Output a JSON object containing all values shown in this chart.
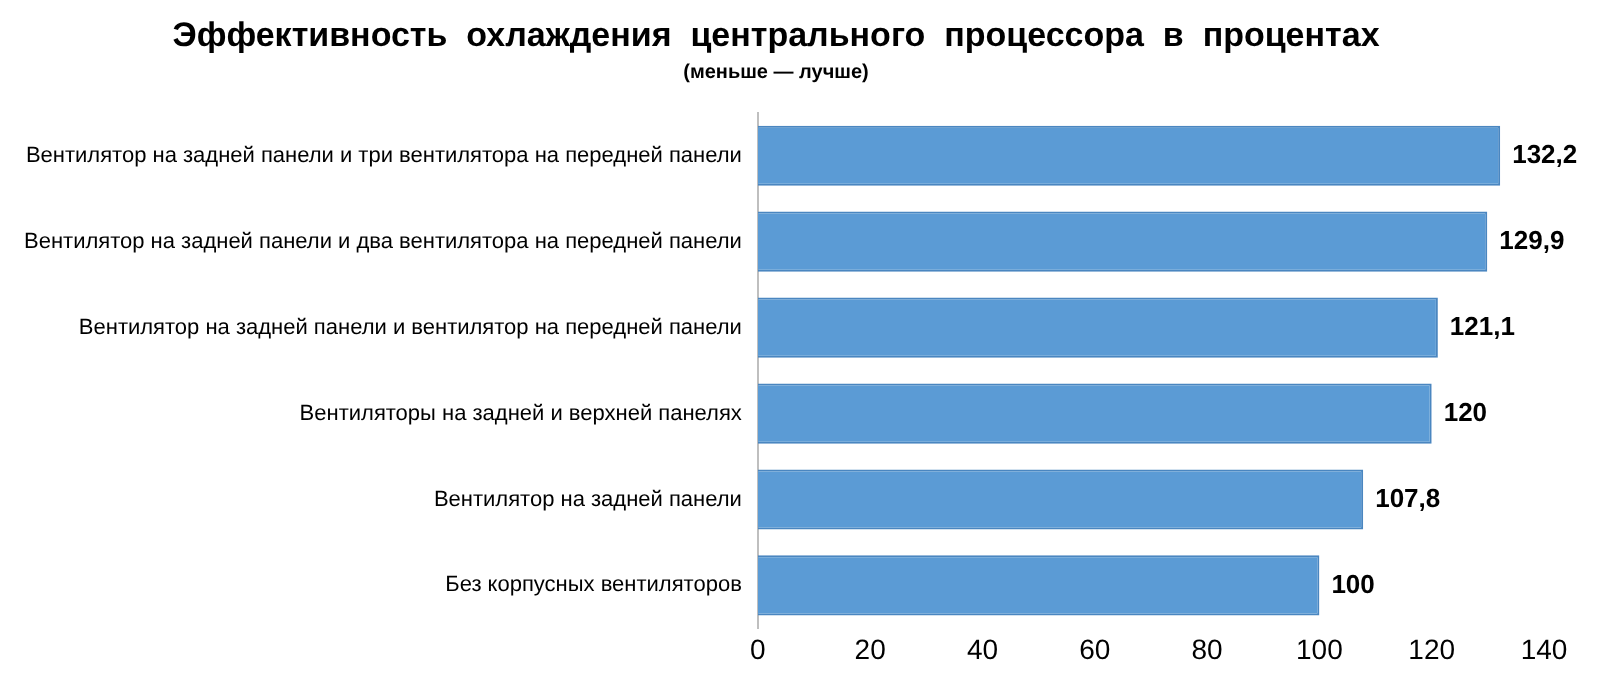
{
  "chart_data": {
    "type": "bar",
    "orientation": "horizontal",
    "title": "Эффективность  охлаждения  центрального  процессора  в  процентах",
    "subtitle": "(меньше — лучше)",
    "categories": [
      "Вентилятор на задней панели и три вентилятора на передней панели",
      "Вентилятор на задней панели и два вентилятора на передней панели",
      "Вентилятор на задней панели и вентилятор на передней панели",
      "Вентиляторы на задней и верхней панелях",
      "Вентилятор на задней панели",
      "Без корпусных вентиляторов"
    ],
    "values": [
      132.2,
      129.9,
      121.1,
      120,
      107.8,
      100
    ],
    "value_labels": [
      "132,2",
      "129,9",
      "121,1",
      "120",
      "107,8",
      "100"
    ],
    "color": "#5b9bd5",
    "xlim": [
      0,
      140
    ],
    "xticks": [
      0,
      20,
      40,
      60,
      80,
      100,
      120,
      140
    ],
    "grid": false,
    "legend": false
  }
}
